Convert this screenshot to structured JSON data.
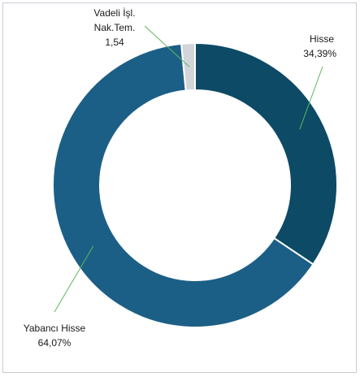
{
  "chart_data": {
    "type": "pie",
    "variant": "donut",
    "slices": [
      {
        "label": "Hisse",
        "value_text": "34,39%",
        "value": 34.39,
        "color": "#0d4a66"
      },
      {
        "label": "Yabancı Hisse",
        "value_text": "64,07%",
        "value": 64.07,
        "color": "#1c5f86"
      },
      {
        "label_lines": [
          "Vadeli İşl.",
          "Nak.Tem."
        ],
        "value_text": "1,54",
        "value": 1.54,
        "color": "#d2d5da"
      }
    ],
    "leader_line_color": "#5cb85c",
    "slice_separator_color": "#ffffff"
  }
}
